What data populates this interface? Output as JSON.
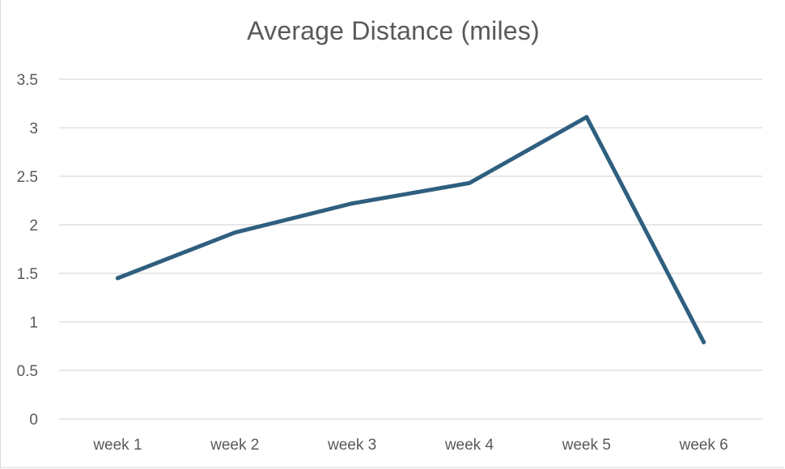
{
  "chart_data": {
    "type": "line",
    "title": "Average Distance (miles)",
    "xlabel": "",
    "ylabel": "",
    "categories": [
      "week 1",
      "week 2",
      "week 3",
      "week 4",
      "week 5",
      "week 6"
    ],
    "series": [
      {
        "values": [
          1.45,
          1.92,
          2.22,
          2.43,
          3.11,
          0.79
        ],
        "color": "#2f5f7f"
      }
    ],
    "ylim": [
      0,
      3.5
    ],
    "yticks": [
      "0",
      "0.5",
      "1",
      "1.5",
      "2",
      "2.5",
      "3",
      "3.5"
    ],
    "grid": true,
    "legend": "none",
    "gridline_color": "#d9d9d9",
    "text_color": "#595959"
  }
}
